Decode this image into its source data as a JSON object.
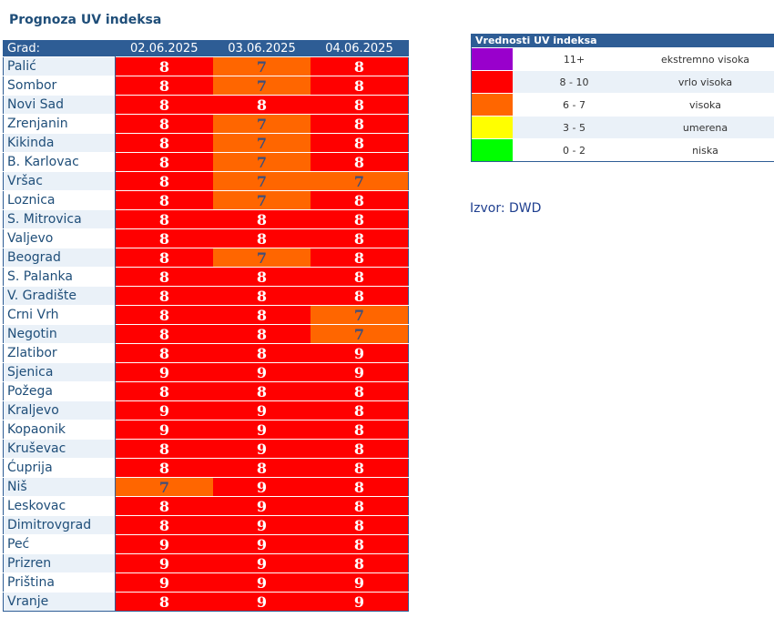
{
  "page": {
    "title": "Prognoza UV indeksa",
    "source": "Izvor: DWD"
  },
  "table": {
    "city_header": "Grad:",
    "dates": [
      "02.06.2025",
      "03.06.2025",
      "04.06.2025"
    ],
    "rows": [
      {
        "city": "Palić",
        "values": [
          8,
          7,
          8
        ]
      },
      {
        "city": "Sombor",
        "values": [
          8,
          7,
          8
        ]
      },
      {
        "city": "Novi Sad",
        "values": [
          8,
          8,
          8
        ]
      },
      {
        "city": "Zrenjanin",
        "values": [
          8,
          7,
          8
        ]
      },
      {
        "city": "Kikinda",
        "values": [
          8,
          7,
          8
        ]
      },
      {
        "city": "B. Karlovac",
        "values": [
          8,
          7,
          8
        ]
      },
      {
        "city": "Vršac",
        "values": [
          8,
          7,
          7
        ]
      },
      {
        "city": "Loznica",
        "values": [
          8,
          7,
          8
        ]
      },
      {
        "city": "S. Mitrovica",
        "values": [
          8,
          8,
          8
        ]
      },
      {
        "city": "Valjevo",
        "values": [
          8,
          8,
          8
        ]
      },
      {
        "city": "Beograd",
        "values": [
          8,
          7,
          8
        ]
      },
      {
        "city": "S. Palanka",
        "values": [
          8,
          8,
          8
        ]
      },
      {
        "city": "V. Gradište",
        "values": [
          8,
          8,
          8
        ]
      },
      {
        "city": "Crni Vrh",
        "values": [
          8,
          8,
          7
        ]
      },
      {
        "city": "Negotin",
        "values": [
          8,
          8,
          7
        ]
      },
      {
        "city": "Zlatibor",
        "values": [
          8,
          8,
          9
        ]
      },
      {
        "city": "Sjenica",
        "values": [
          9,
          9,
          9
        ]
      },
      {
        "city": "Požega",
        "values": [
          8,
          8,
          8
        ]
      },
      {
        "city": "Kraljevo",
        "values": [
          9,
          9,
          8
        ]
      },
      {
        "city": "Kopaonik",
        "values": [
          9,
          9,
          8
        ]
      },
      {
        "city": "Kruševac",
        "values": [
          8,
          9,
          8
        ]
      },
      {
        "city": "Ćuprija",
        "values": [
          8,
          8,
          8
        ]
      },
      {
        "city": "Niš",
        "values": [
          7,
          9,
          8
        ]
      },
      {
        "city": "Leskovac",
        "values": [
          8,
          9,
          8
        ]
      },
      {
        "city": "Dimitrovgrad",
        "values": [
          8,
          9,
          8
        ]
      },
      {
        "city": "Peć",
        "values": [
          9,
          9,
          8
        ]
      },
      {
        "city": "Prizren",
        "values": [
          9,
          9,
          8
        ]
      },
      {
        "city": "Priština",
        "values": [
          9,
          9,
          9
        ]
      },
      {
        "city": "Vranje",
        "values": [
          8,
          9,
          9
        ]
      }
    ]
  },
  "legend": {
    "title": "Vrednosti UV indeksa",
    "items": [
      {
        "range": "11+",
        "label": "ekstremno visoka",
        "color": "#9900cc"
      },
      {
        "range": "8 - 10",
        "label": "vrlo visoka",
        "color": "#ff0000"
      },
      {
        "range": "6 - 7",
        "label": "visoka",
        "color": "#ff6600"
      },
      {
        "range": "3 - 5",
        "label": "umerena",
        "color": "#ffff00"
      },
      {
        "range": "0 - 2",
        "label": "niska",
        "color": "#00ff00"
      }
    ]
  },
  "colors": {
    "very_high": "#ff0000",
    "high": "#ff6600",
    "very_high_text": "#ffffff",
    "high_text": "#3f4f7a",
    "header_bg": "#2e5d95",
    "title_color": "#1f4e79"
  }
}
